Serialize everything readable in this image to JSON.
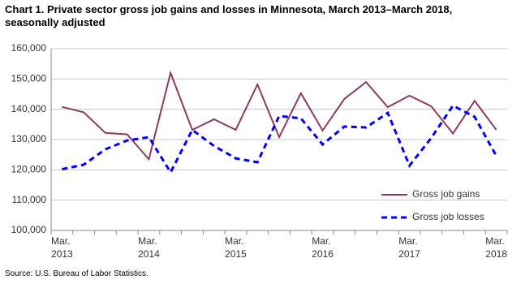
{
  "chart_data": {
    "type": "line",
    "title": "Chart 1. Private sector gross job gains and losses in Minnesota, March 2013–March 2018, seasonally adjusted",
    "source": "Source: U.S. Bureau of Labor Statistics.",
    "categories": [
      "Mar. 2013",
      null,
      null,
      null,
      "Mar. 2014",
      null,
      null,
      null,
      "Mar. 2015",
      null,
      null,
      null,
      "Mar. 2016",
      null,
      null,
      null,
      "Mar. 2017",
      null,
      null,
      null,
      "Mar. 2018"
    ],
    "series": [
      {
        "name": "Gross job gains",
        "color": "#8b3a62",
        "dash": false,
        "values": [
          140800,
          139000,
          132200,
          131700,
          123500,
          152000,
          133200,
          136700,
          133200,
          148200,
          130800,
          145300,
          133000,
          143400,
          149000,
          140700,
          144500,
          141000,
          132000,
          142800,
          133200
        ]
      },
      {
        "name": "Gross job losses",
        "color": "#0000ff",
        "dash": true,
        "values": [
          120200,
          121700,
          126800,
          129700,
          130800,
          119200,
          133200,
          127900,
          123800,
          122500,
          137800,
          137000,
          128400,
          134300,
          134000,
          138800,
          121400,
          130500,
          141200,
          137500,
          124600
        ]
      }
    ],
    "ylim": [
      100000,
      160000
    ],
    "yticks": [
      {
        "value": 100000,
        "label": "100,000"
      },
      {
        "value": 110000,
        "label": "110,000"
      },
      {
        "value": 120000,
        "label": "120,000"
      },
      {
        "value": 130000,
        "label": "130,000"
      },
      {
        "value": 140000,
        "label": "140,000"
      },
      {
        "value": 150000,
        "label": "150,000"
      },
      {
        "value": 160000,
        "label": "160,000"
      }
    ],
    "grid": true,
    "legend": "lower right"
  }
}
